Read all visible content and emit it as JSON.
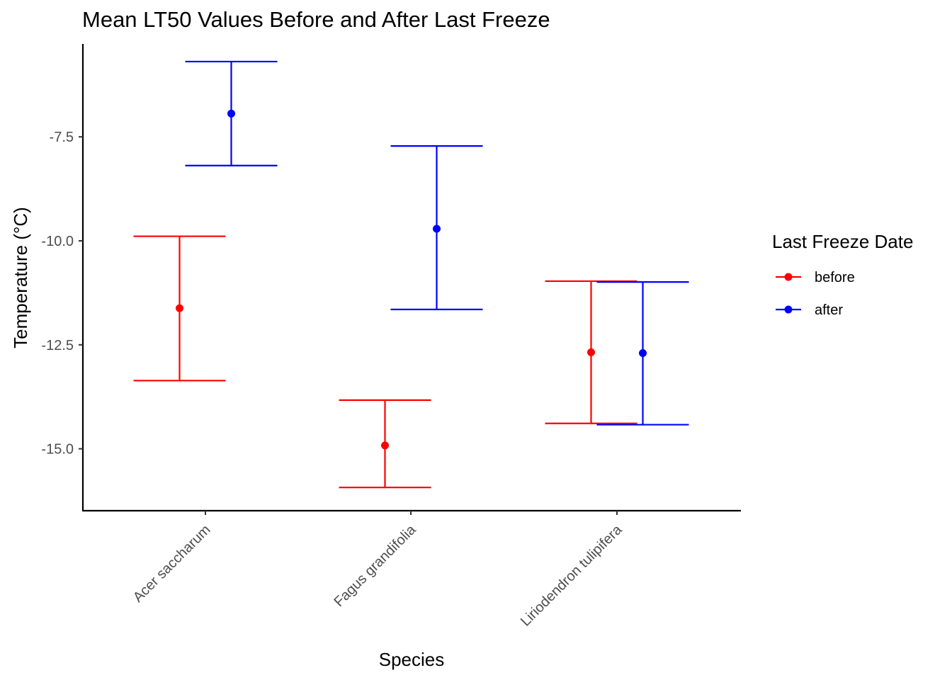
{
  "chart_data": {
    "type": "errorbar",
    "title": "Mean LT50 Values Before and After Last Freeze",
    "xlabel": "Species",
    "ylabel": "Temperature (°C)",
    "categories": [
      "Acer saccharum",
      "Fagus grandifolia",
      "Liriodendron tulipifera"
    ],
    "ylim": [
      -16.5,
      -5.5
    ],
    "yticks": [
      -15.0,
      -12.5,
      -10.0,
      -7.5
    ],
    "ytick_labels": [
      "-15.0",
      "-12.5",
      "-10.0",
      "-7.5"
    ],
    "grid": false,
    "legend": {
      "title": "Last Freeze Date",
      "position": "right"
    },
    "series": [
      {
        "name": "before",
        "color": "#ff0000",
        "points": [
          {
            "category": "Acer saccharum",
            "mean": -11.62,
            "lower": -13.36,
            "upper": -9.89
          },
          {
            "category": "Fagus grandifolia",
            "mean": -14.92,
            "lower": -15.93,
            "upper": -13.83
          },
          {
            "category": "Liriodendron tulipifera",
            "mean": -12.68,
            "lower": -14.39,
            "upper": -10.97
          }
        ]
      },
      {
        "name": "after",
        "color": "#0000ff",
        "points": [
          {
            "category": "Acer saccharum",
            "mean": -6.94,
            "lower": -8.19,
            "upper": -5.69
          },
          {
            "category": "Fagus grandifolia",
            "mean": -9.71,
            "lower": -11.65,
            "upper": -7.72
          },
          {
            "category": "Liriodendron tulipifera",
            "mean": -12.7,
            "lower": -14.42,
            "upper": -10.99
          }
        ]
      }
    ]
  }
}
